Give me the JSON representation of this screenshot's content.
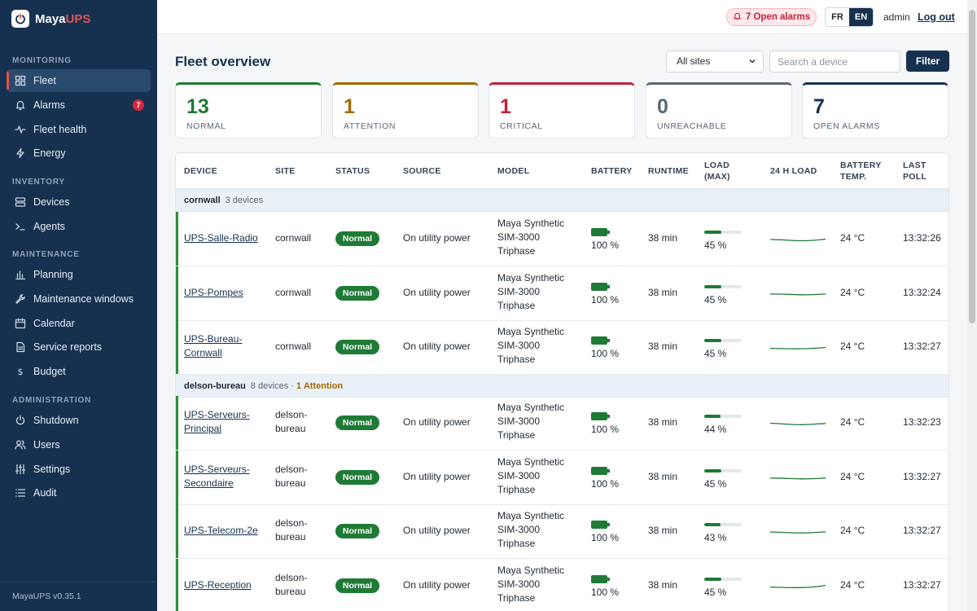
{
  "brand": {
    "name_main": "Maya",
    "name_accent": "UPS",
    "logo_icon": "power-logo-icon"
  },
  "sidebar": {
    "sections": [
      {
        "title": "MONITORING",
        "items": [
          {
            "label": "Fleet",
            "icon": "grid-icon",
            "active": true
          },
          {
            "label": "Alarms",
            "icon": "bell-icon",
            "badge": "7"
          },
          {
            "label": "Fleet health",
            "icon": "pulse-icon"
          },
          {
            "label": "Energy",
            "icon": "bolt-icon"
          }
        ]
      },
      {
        "title": "INVENTORY",
        "items": [
          {
            "label": "Devices",
            "icon": "server-icon"
          },
          {
            "label": "Agents",
            "icon": "terminal-icon"
          }
        ]
      },
      {
        "title": "MAINTENANCE",
        "items": [
          {
            "label": "Planning",
            "icon": "bar-chart-icon"
          },
          {
            "label": "Maintenance windows",
            "icon": "wrench-icon"
          },
          {
            "label": "Calendar",
            "icon": "calendar-icon"
          },
          {
            "label": "Service reports",
            "icon": "document-icon"
          },
          {
            "label": "Budget",
            "icon": "dollar-icon"
          }
        ]
      },
      {
        "title": "ADMINISTRATION",
        "items": [
          {
            "label": "Shutdown",
            "icon": "power-icon"
          },
          {
            "label": "Users",
            "icon": "users-icon"
          },
          {
            "label": "Settings",
            "icon": "sliders-icon"
          },
          {
            "label": "Audit",
            "icon": "list-icon"
          }
        ]
      }
    ],
    "footer": "MayaUPS v0.35.1"
  },
  "topbar": {
    "alarm_pill": "7 Open alarms",
    "lang_fr": "FR",
    "lang_en": "EN",
    "active_lang": "EN",
    "user": "admin",
    "logout": "Log out"
  },
  "main": {
    "title": "Fleet overview",
    "site_select": "All sites",
    "search_placeholder": "Search a device",
    "filter_label": "Filter"
  },
  "kpis": [
    {
      "value": "13",
      "label": "NORMAL",
      "color": "#1f7a35"
    },
    {
      "value": "1",
      "label": "ATTENTION",
      "color": "#a06a00"
    },
    {
      "value": "1",
      "label": "CRITICAL",
      "color": "#c42238"
    },
    {
      "value": "0",
      "label": "UNREACHABLE",
      "color": "#5b6774"
    },
    {
      "value": "7",
      "label": "OPEN ALARMS",
      "color": "#16314f"
    }
  ],
  "table": {
    "headers": {
      "device": "DEVICE",
      "site": "SITE",
      "status": "STATUS",
      "source": "SOURCE",
      "model": "MODEL",
      "battery": "BATTERY",
      "runtime": "RUNTIME",
      "load_1": "LOAD",
      "load_2": "(MAX)",
      "load24": "24 H LOAD",
      "btemp_1": "BATTERY",
      "btemp_2": "TEMP.",
      "poll_1": "LAST",
      "poll_2": "POLL"
    },
    "groups": [
      {
        "name": "cornwall",
        "count": "3 devices",
        "attention": ""
      },
      {
        "name": "delson-bureau",
        "count": "8 devices · ",
        "attention": "1 Attention"
      }
    ],
    "rows": [
      {
        "device": [
          "UPS-Salle-Radio"
        ],
        "site": [
          "cornwall"
        ],
        "status": "Normal",
        "source": "On utility power",
        "model": [
          "Maya Synthetic",
          "SIM-3000",
          "Triphase"
        ],
        "battery": "100 %",
        "battery_level": 1.0,
        "runtime": "38 min",
        "load": "45 %",
        "load_level": 0.45,
        "temp": "24 °C",
        "poll": "13:32:26"
      },
      {
        "device": [
          "UPS-Pompes"
        ],
        "site": [
          "cornwall"
        ],
        "status": "Normal",
        "source": "On utility power",
        "model": [
          "Maya Synthetic",
          "SIM-3000",
          "Triphase"
        ],
        "battery": "100 %",
        "battery_level": 1.0,
        "runtime": "38 min",
        "load": "45 %",
        "load_level": 0.45,
        "temp": "24 °C",
        "poll": "13:32:24"
      },
      {
        "device": [
          "UPS-Bureau-",
          "Cornwall"
        ],
        "site": [
          "cornwall"
        ],
        "status": "Normal",
        "source": "On utility power",
        "model": [
          "Maya Synthetic",
          "SIM-3000",
          "Triphase"
        ],
        "battery": "100 %",
        "battery_level": 1.0,
        "runtime": "38 min",
        "load": "45 %",
        "load_level": 0.45,
        "temp": "24 °C",
        "poll": "13:32:27"
      },
      {
        "device": [
          "UPS-Serveurs-",
          "Principal"
        ],
        "site": [
          "delson-",
          "bureau"
        ],
        "status": "Normal",
        "source": "On utility power",
        "model": [
          "Maya Synthetic",
          "SIM-3000",
          "Triphase"
        ],
        "battery": "100 %",
        "battery_level": 1.0,
        "runtime": "38 min",
        "load": "44 %",
        "load_level": 0.44,
        "temp": "24 °C",
        "poll": "13:32:23"
      },
      {
        "device": [
          "UPS-Serveurs-",
          "Secondaire"
        ],
        "site": [
          "delson-",
          "bureau"
        ],
        "status": "Normal",
        "source": "On utility power",
        "model": [
          "Maya Synthetic",
          "SIM-3000",
          "Triphase"
        ],
        "battery": "100 %",
        "battery_level": 1.0,
        "runtime": "38 min",
        "load": "45 %",
        "load_level": 0.45,
        "temp": "24 °C",
        "poll": "13:32:27"
      },
      {
        "device": [
          "UPS-Telecom-2e"
        ],
        "site": [
          "delson-",
          "bureau"
        ],
        "status": "Normal",
        "source": "On utility power",
        "model": [
          "Maya Synthetic",
          "SIM-3000",
          "Triphase"
        ],
        "battery": "100 %",
        "battery_level": 1.0,
        "runtime": "38 min",
        "load": "43 %",
        "load_level": 0.43,
        "temp": "24 °C",
        "poll": "13:32:27"
      },
      {
        "device": [
          "UPS-Reception"
        ],
        "site": [
          "delson-",
          "bureau"
        ],
        "status": "Normal",
        "source": "On utility power",
        "model": [
          "Maya Synthetic",
          "SIM-3000",
          "Triphase"
        ],
        "battery": "100 %",
        "battery_level": 1.0,
        "runtime": "38 min",
        "load": "45 %",
        "load_level": 0.45,
        "temp": "24 °C",
        "poll": "13:32:27"
      }
    ]
  },
  "colors": {
    "sidebar_bg": "#16314f",
    "ok_green": "#1f7a35",
    "critical_red": "#c42238",
    "attention_amber": "#a06a00"
  }
}
